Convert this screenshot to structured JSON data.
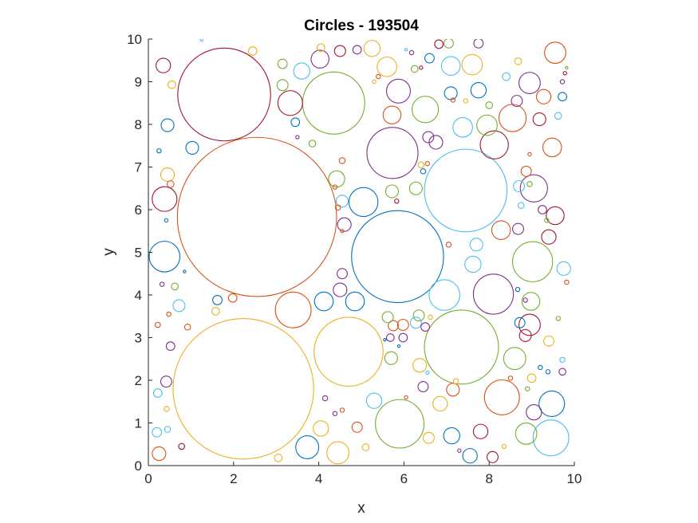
{
  "chart_data": {
    "type": "scatter",
    "title": "Circles - 193504",
    "xlabel": "x",
    "ylabel": "y",
    "xlim": [
      0,
      10
    ],
    "ylim": [
      0,
      10
    ],
    "xticks": [
      "0",
      "2",
      "4",
      "6",
      "8",
      "10"
    ],
    "yticks": [
      "0",
      "1",
      "2",
      "3",
      "4",
      "5",
      "6",
      "7",
      "8",
      "9",
      "10"
    ],
    "grid": false,
    "axis_equal": true,
    "colors": [
      "#0072BD",
      "#D95319",
      "#EDB120",
      "#7E2F8E",
      "#77AC30",
      "#4DBEEE",
      "#A2142F"
    ],
    "circles": [
      {
        "x": 2.55,
        "y": 5.83,
        "r": 1.87,
        "color": "#D95319"
      },
      {
        "x": 2.23,
        "y": 1.8,
        "r": 1.65,
        "color": "#EDB120"
      },
      {
        "x": 1.78,
        "y": 8.7,
        "r": 1.09,
        "color": "#A2142F"
      },
      {
        "x": 5.85,
        "y": 4.9,
        "r": 1.08,
        "color": "#0072BD"
      },
      {
        "x": 7.45,
        "y": 6.45,
        "r": 0.97,
        "color": "#4DBEEE"
      },
      {
        "x": 7.35,
        "y": 2.78,
        "r": 0.87,
        "color": "#77AC30"
      },
      {
        "x": 4.7,
        "y": 2.67,
        "r": 0.81,
        "color": "#EDB120"
      },
      {
        "x": 4.35,
        "y": 8.5,
        "r": 0.73,
        "color": "#77AC30"
      },
      {
        "x": 5.73,
        "y": 7.33,
        "r": 0.6,
        "color": "#7E2F8E"
      },
      {
        "x": 5.9,
        "y": 0.98,
        "r": 0.57,
        "color": "#77AC30"
      },
      {
        "x": 8.1,
        "y": 4.02,
        "r": 0.47,
        "color": "#7E2F8E"
      },
      {
        "x": 9.02,
        "y": 4.78,
        "r": 0.47,
        "color": "#77AC30"
      },
      {
        "x": 9.45,
        "y": 0.65,
        "r": 0.42,
        "color": "#4DBEEE"
      },
      {
        "x": 8.3,
        "y": 1.6,
        "r": 0.41,
        "color": "#D95319"
      },
      {
        "x": 3.4,
        "y": 3.65,
        "r": 0.42,
        "color": "#D95319"
      },
      {
        "x": 0.38,
        "y": 4.9,
        "r": 0.36,
        "color": "#0072BD"
      },
      {
        "x": 6.95,
        "y": 4.0,
        "r": 0.36,
        "color": "#4DBEEE"
      },
      {
        "x": 5.05,
        "y": 6.18,
        "r": 0.34,
        "color": "#0072BD"
      },
      {
        "x": 8.12,
        "y": 7.52,
        "r": 0.33,
        "color": "#A2142F"
      },
      {
        "x": 8.55,
        "y": 8.15,
        "r": 0.32,
        "color": "#D95319"
      },
      {
        "x": 6.5,
        "y": 8.35,
        "r": 0.31,
        "color": "#77AC30"
      },
      {
        "x": 9.05,
        "y": 6.5,
        "r": 0.32,
        "color": "#7E2F8E"
      },
      {
        "x": 3.33,
        "y": 8.5,
        "r": 0.29,
        "color": "#A2142F"
      },
      {
        "x": 0.38,
        "y": 6.25,
        "r": 0.29,
        "color": "#A2142F"
      },
      {
        "x": 8.95,
        "y": 3.3,
        "r": 0.25,
        "color": "#A2142F"
      },
      {
        "x": 8.87,
        "y": 0.75,
        "r": 0.25,
        "color": "#77AC30"
      },
      {
        "x": 3.73,
        "y": 0.43,
        "r": 0.27,
        "color": "#0072BD"
      },
      {
        "x": 4.45,
        "y": 0.3,
        "r": 0.26,
        "color": "#EDB120"
      },
      {
        "x": 9.47,
        "y": 1.45,
        "r": 0.3,
        "color": "#0072BD"
      },
      {
        "x": 8.95,
        "y": 8.97,
        "r": 0.25,
        "color": "#7E2F8E"
      },
      {
        "x": 7.6,
        "y": 9.4,
        "r": 0.24,
        "color": "#EDB120"
      },
      {
        "x": 7.1,
        "y": 9.37,
        "r": 0.22,
        "color": "#4DBEEE"
      },
      {
        "x": 5.6,
        "y": 9.35,
        "r": 0.23,
        "color": "#EDB120"
      },
      {
        "x": 5.87,
        "y": 8.78,
        "r": 0.28,
        "color": "#7E2F8E"
      },
      {
        "x": 7.95,
        "y": 7.98,
        "r": 0.24,
        "color": "#77AC30"
      },
      {
        "x": 7.38,
        "y": 7.93,
        "r": 0.23,
        "color": "#4DBEEE"
      },
      {
        "x": 5.72,
        "y": 8.22,
        "r": 0.21,
        "color": "#D95319"
      },
      {
        "x": 4.03,
        "y": 9.53,
        "r": 0.21,
        "color": "#7E2F8E"
      },
      {
        "x": 3.6,
        "y": 9.25,
        "r": 0.19,
        "color": "#4DBEEE"
      },
      {
        "x": 9.55,
        "y": 9.68,
        "r": 0.25,
        "color": "#D95319"
      },
      {
        "x": 9.48,
        "y": 7.46,
        "r": 0.22,
        "color": "#D95319"
      },
      {
        "x": 9.55,
        "y": 5.86,
        "r": 0.21,
        "color": "#A2142F"
      },
      {
        "x": 9.75,
        "y": 4.62,
        "r": 0.16,
        "color": "#4DBEEE"
      },
      {
        "x": 9.4,
        "y": 5.36,
        "r": 0.17,
        "color": "#A2142F"
      },
      {
        "x": 8.6,
        "y": 2.51,
        "r": 0.26,
        "color": "#77AC30"
      },
      {
        "x": 8.08,
        "y": 0.2,
        "r": 0.13,
        "color": "#A2142F"
      },
      {
        "x": 7.55,
        "y": 0.23,
        "r": 0.17,
        "color": "#0072BD"
      },
      {
        "x": 7.8,
        "y": 0.8,
        "r": 0.17,
        "color": "#A2142F"
      },
      {
        "x": 7.12,
        "y": 0.7,
        "r": 0.19,
        "color": "#0072BD"
      },
      {
        "x": 6.85,
        "y": 1.45,
        "r": 0.17,
        "color": "#EDB120"
      },
      {
        "x": 7.15,
        "y": 1.78,
        "r": 0.15,
        "color": "#D95319"
      },
      {
        "x": 6.58,
        "y": 0.65,
        "r": 0.13,
        "color": "#EDB120"
      },
      {
        "x": 9.05,
        "y": 1.25,
        "r": 0.18,
        "color": "#7E2F8E"
      },
      {
        "x": 5.3,
        "y": 1.52,
        "r": 0.18,
        "color": "#4DBEEE"
      },
      {
        "x": 4.05,
        "y": 0.87,
        "r": 0.18,
        "color": "#EDB120"
      },
      {
        "x": 4.12,
        "y": 3.85,
        "r": 0.22,
        "color": "#0072BD"
      },
      {
        "x": 4.6,
        "y": 5.65,
        "r": 0.16,
        "color": "#7E2F8E"
      },
      {
        "x": 4.55,
        "y": 6.2,
        "r": 0.14,
        "color": "#4DBEEE"
      },
      {
        "x": 4.42,
        "y": 6.72,
        "r": 0.19,
        "color": "#77AC30"
      },
      {
        "x": 5.25,
        "y": 9.78,
        "r": 0.19,
        "color": "#EDB120"
      },
      {
        "x": 4.5,
        "y": 9.72,
        "r": 0.13,
        "color": "#A2142F"
      },
      {
        "x": 7.62,
        "y": 4.72,
        "r": 0.19,
        "color": "#4DBEEE"
      },
      {
        "x": 7.7,
        "y": 5.18,
        "r": 0.15,
        "color": "#4DBEEE"
      },
      {
        "x": 8.28,
        "y": 5.52,
        "r": 0.22,
        "color": "#D95319"
      },
      {
        "x": 8.68,
        "y": 5.55,
        "r": 0.13,
        "color": "#7E2F8E"
      },
      {
        "x": 8.98,
        "y": 3.85,
        "r": 0.21,
        "color": "#77AC30"
      },
      {
        "x": 8.85,
        "y": 3.05,
        "r": 0.14,
        "color": "#A2142F"
      },
      {
        "x": 9.4,
        "y": 2.92,
        "r": 0.12,
        "color": "#EDB120"
      },
      {
        "x": 5.72,
        "y": 6.43,
        "r": 0.15,
        "color": "#77AC30"
      },
      {
        "x": 6.28,
        "y": 6.5,
        "r": 0.15,
        "color": "#77AC30"
      },
      {
        "x": 6.75,
        "y": 7.58,
        "r": 0.16,
        "color": "#7E2F8E"
      },
      {
        "x": 6.57,
        "y": 7.7,
        "r": 0.13,
        "color": "#7E2F8E"
      },
      {
        "x": 7.1,
        "y": 8.73,
        "r": 0.15,
        "color": "#0072BD"
      },
      {
        "x": 7.75,
        "y": 8.8,
        "r": 0.18,
        "color": "#0072BD"
      },
      {
        "x": 9.18,
        "y": 8.12,
        "r": 0.15,
        "color": "#A2142F"
      },
      {
        "x": 0.35,
        "y": 9.38,
        "r": 0.17,
        "color": "#A2142F"
      },
      {
        "x": 0.45,
        "y": 7.98,
        "r": 0.15,
        "color": "#0072BD"
      },
      {
        "x": 1.03,
        "y": 7.45,
        "r": 0.15,
        "color": "#0072BD"
      },
      {
        "x": 0.45,
        "y": 6.82,
        "r": 0.16,
        "color": "#EDB120"
      },
      {
        "x": 0.25,
        "y": 0.28,
        "r": 0.16,
        "color": "#D95319"
      },
      {
        "x": 0.42,
        "y": 1.97,
        "r": 0.13,
        "color": "#7E2F8E"
      },
      {
        "x": 0.72,
        "y": 3.75,
        "r": 0.14,
        "color": "#4DBEEE"
      },
      {
        "x": 3.15,
        "y": 8.92,
        "r": 0.13,
        "color": "#77AC30"
      },
      {
        "x": 3.45,
        "y": 8.05,
        "r": 0.1,
        "color": "#0072BD"
      },
      {
        "x": 6.28,
        "y": 3.35,
        "r": 0.13,
        "color": "#4DBEEE"
      },
      {
        "x": 6.37,
        "y": 2.35,
        "r": 0.16,
        "color": "#EDB120"
      },
      {
        "x": 5.7,
        "y": 2.52,
        "r": 0.15,
        "color": "#77AC30"
      },
      {
        "x": 5.75,
        "y": 3.28,
        "r": 0.12,
        "color": "#D95319"
      },
      {
        "x": 5.98,
        "y": 3.3,
        "r": 0.13,
        "color": "#D95319"
      },
      {
        "x": 6.35,
        "y": 3.52,
        "r": 0.13,
        "color": "#77AC30"
      },
      {
        "x": 6.45,
        "y": 1.85,
        "r": 0.12,
        "color": "#7E2F8E"
      },
      {
        "x": 4.05,
        "y": 9.8,
        "r": 0.09,
        "color": "#EDB120"
      },
      {
        "x": 4.9,
        "y": 0.9,
        "r": 0.12,
        "color": "#D95319"
      },
      {
        "x": 4.55,
        "y": 4.5,
        "r": 0.12,
        "color": "#7E2F8E"
      },
      {
        "x": 6.6,
        "y": 9.55,
        "r": 0.11,
        "color": "#0072BD"
      },
      {
        "x": 6.82,
        "y": 9.88,
        "r": 0.1,
        "color": "#A2142F"
      },
      {
        "x": 7.05,
        "y": 9.9,
        "r": 0.11,
        "color": "#77AC30"
      },
      {
        "x": 7.75,
        "y": 9.9,
        "r": 0.11,
        "color": "#7E2F8E"
      },
      {
        "x": 2.45,
        "y": 9.72,
        "r": 0.1,
        "color": "#EDB120"
      },
      {
        "x": 3.15,
        "y": 9.42,
        "r": 0.11,
        "color": "#77AC30"
      },
      {
        "x": 5.68,
        "y": 3.0,
        "r": 0.09,
        "color": "#7E2F8E"
      },
      {
        "x": 5.98,
        "y": 3.0,
        "r": 0.1,
        "color": "#7E2F8E"
      },
      {
        "x": 6.5,
        "y": 3.25,
        "r": 0.1,
        "color": "#7E2F8E"
      },
      {
        "x": 8.0,
        "y": 8.45,
        "r": 0.08,
        "color": "#77AC30"
      },
      {
        "x": 8.87,
        "y": 6.9,
        "r": 0.12,
        "color": "#D95319"
      },
      {
        "x": 8.95,
        "y": 6.6,
        "r": 0.06,
        "color": "#77AC30"
      },
      {
        "x": 8.68,
        "y": 9.48,
        "r": 0.08,
        "color": "#EDB120"
      },
      {
        "x": 8.4,
        "y": 9.12,
        "r": 0.09,
        "color": "#4DBEEE"
      },
      {
        "x": 9.28,
        "y": 8.65,
        "r": 0.17,
        "color": "#D95319"
      },
      {
        "x": 8.65,
        "y": 8.55,
        "r": 0.13,
        "color": "#7E2F8E"
      },
      {
        "x": 0.55,
        "y": 8.93,
        "r": 0.09,
        "color": "#EDB120"
      },
      {
        "x": 0.52,
        "y": 6.6,
        "r": 0.08,
        "color": "#D95319"
      },
      {
        "x": 0.62,
        "y": 4.2,
        "r": 0.08,
        "color": "#77AC30"
      },
      {
        "x": 0.48,
        "y": 3.55,
        "r": 0.05,
        "color": "#D95319"
      },
      {
        "x": 0.92,
        "y": 3.25,
        "r": 0.07,
        "color": "#D95319"
      },
      {
        "x": 0.22,
        "y": 3.3,
        "r": 0.06,
        "color": "#D95319"
      },
      {
        "x": 0.32,
        "y": 4.25,
        "r": 0.05,
        "color": "#7E2F8E"
      },
      {
        "x": 0.52,
        "y": 2.8,
        "r": 0.1,
        "color": "#7E2F8E"
      },
      {
        "x": 0.22,
        "y": 1.7,
        "r": 0.1,
        "color": "#4DBEEE"
      },
      {
        "x": 0.43,
        "y": 1.33,
        "r": 0.06,
        "color": "#EDB120"
      },
      {
        "x": 0.2,
        "y": 0.78,
        "r": 0.11,
        "color": "#4DBEEE"
      },
      {
        "x": 0.45,
        "y": 0.85,
        "r": 0.07,
        "color": "#4DBEEE"
      },
      {
        "x": 0.78,
        "y": 0.45,
        "r": 0.07,
        "color": "#A2142F"
      },
      {
        "x": 1.62,
        "y": 3.88,
        "r": 0.11,
        "color": "#0072BD"
      },
      {
        "x": 1.98,
        "y": 3.93,
        "r": 0.1,
        "color": "#D95319"
      },
      {
        "x": 1.58,
        "y": 3.62,
        "r": 0.09,
        "color": "#EDB120"
      },
      {
        "x": 3.05,
        "y": 0.18,
        "r": 0.09,
        "color": "#EDB120"
      },
      {
        "x": 4.5,
        "y": 4.12,
        "r": 0.16,
        "color": "#7E2F8E"
      },
      {
        "x": 4.85,
        "y": 3.85,
        "r": 0.22,
        "color": "#0072BD"
      },
      {
        "x": 4.38,
        "y": 6.53,
        "r": 0.05,
        "color": "#D95319"
      },
      {
        "x": 4.55,
        "y": 5.5,
        "r": 0.04,
        "color": "#D95319"
      },
      {
        "x": 4.45,
        "y": 6.05,
        "r": 0.06,
        "color": "#D95319"
      },
      {
        "x": 4.15,
        "y": 1.58,
        "r": 0.06,
        "color": "#7E2F8E"
      },
      {
        "x": 4.38,
        "y": 1.22,
        "r": 0.05,
        "color": "#7E2F8E"
      },
      {
        "x": 4.55,
        "y": 1.3,
        "r": 0.05,
        "color": "#D95319"
      },
      {
        "x": 5.1,
        "y": 0.43,
        "r": 0.08,
        "color": "#EDB120"
      },
      {
        "x": 5.3,
        "y": 9.0,
        "r": 0.04,
        "color": "#EDB120"
      },
      {
        "x": 6.25,
        "y": 9.3,
        "r": 0.08,
        "color": "#77AC30"
      },
      {
        "x": 6.18,
        "y": 9.68,
        "r": 0.05,
        "color": "#7E2F8E"
      },
      {
        "x": 6.05,
        "y": 9.75,
        "r": 0.03,
        "color": "#4DBEEE"
      },
      {
        "x": 6.4,
        "y": 7.05,
        "r": 0.07,
        "color": "#EDB120"
      },
      {
        "x": 6.55,
        "y": 7.08,
        "r": 0.05,
        "color": "#D95319"
      },
      {
        "x": 6.45,
        "y": 6.9,
        "r": 0.06,
        "color": "#0072BD"
      },
      {
        "x": 5.83,
        "y": 6.2,
        "r": 0.05,
        "color": "#A2142F"
      },
      {
        "x": 7.15,
        "y": 8.57,
        "r": 0.05,
        "color": "#D95319"
      },
      {
        "x": 7.05,
        "y": 5.18,
        "r": 0.06,
        "color": "#D95319"
      },
      {
        "x": 7.45,
        "y": 8.55,
        "r": 0.05,
        "color": "#EDB120"
      },
      {
        "x": 8.67,
        "y": 4.13,
        "r": 0.05,
        "color": "#0072BD"
      },
      {
        "x": 8.85,
        "y": 3.88,
        "r": 0.05,
        "color": "#7E2F8E"
      },
      {
        "x": 8.7,
        "y": 6.55,
        "r": 0.13,
        "color": "#4DBEEE"
      },
      {
        "x": 8.75,
        "y": 6.1,
        "r": 0.07,
        "color": "#4DBEEE"
      },
      {
        "x": 9.25,
        "y": 6.0,
        "r": 0.1,
        "color": "#7E2F8E"
      },
      {
        "x": 9.35,
        "y": 5.75,
        "r": 0.05,
        "color": "#77AC30"
      },
      {
        "x": 9.38,
        "y": 2.2,
        "r": 0.05,
        "color": "#0072BD"
      },
      {
        "x": 9.2,
        "y": 2.3,
        "r": 0.05,
        "color": "#0072BD"
      },
      {
        "x": 9.72,
        "y": 2.2,
        "r": 0.08,
        "color": "#7E2F8E"
      },
      {
        "x": 9.72,
        "y": 2.48,
        "r": 0.06,
        "color": "#4DBEEE"
      },
      {
        "x": 9.82,
        "y": 4.3,
        "r": 0.05,
        "color": "#D95319"
      },
      {
        "x": 9.62,
        "y": 3.45,
        "r": 0.05,
        "color": "#77AC30"
      },
      {
        "x": 9.72,
        "y": 8.65,
        "r": 0.1,
        "color": "#0072BD"
      },
      {
        "x": 9.62,
        "y": 8.2,
        "r": 0.08,
        "color": "#4DBEEE"
      },
      {
        "x": 9.72,
        "y": 9.0,
        "r": 0.05,
        "color": "#7E2F8E"
      },
      {
        "x": 9.78,
        "y": 9.2,
        "r": 0.04,
        "color": "#A2142F"
      },
      {
        "x": 9.82,
        "y": 9.33,
        "r": 0.03,
        "color": "#77AC30"
      },
      {
        "x": 8.95,
        "y": 7.3,
        "r": 0.04,
        "color": "#D95319"
      },
      {
        "x": 8.5,
        "y": 2.05,
        "r": 0.05,
        "color": "#D95319"
      },
      {
        "x": 8.35,
        "y": 0.45,
        "r": 0.05,
        "color": "#EDB120"
      },
      {
        "x": 8.9,
        "y": 1.8,
        "r": 0.05,
        "color": "#77AC30"
      },
      {
        "x": 9.0,
        "y": 2.05,
        "r": 0.1,
        "color": "#EDB120"
      },
      {
        "x": 8.72,
        "y": 3.35,
        "r": 0.12,
        "color": "#0072BD"
      },
      {
        "x": 7.3,
        "y": 0.35,
        "r": 0.04,
        "color": "#7E2F8E"
      },
      {
        "x": 7.22,
        "y": 1.98,
        "r": 0.06,
        "color": "#EDB120"
      },
      {
        "x": 6.05,
        "y": 1.6,
        "r": 0.04,
        "color": "#D95319"
      },
      {
        "x": 6.55,
        "y": 2.18,
        "r": 0.04,
        "color": "#4DBEEE"
      },
      {
        "x": 5.55,
        "y": 2.95,
        "r": 0.03,
        "color": "#0072BD"
      },
      {
        "x": 5.62,
        "y": 3.48,
        "r": 0.13,
        "color": "#77AC30"
      },
      {
        "x": 6.62,
        "y": 3.48,
        "r": 0.05,
        "color": "#EDB120"
      },
      {
        "x": 5.88,
        "y": 2.8,
        "r": 0.03,
        "color": "#0072BD"
      },
      {
        "x": 5.4,
        "y": 9.12,
        "r": 0.05,
        "color": "#D95319"
      },
      {
        "x": 4.55,
        "y": 7.15,
        "r": 0.07,
        "color": "#D95319"
      },
      {
        "x": 3.85,
        "y": 7.55,
        "r": 0.08,
        "color": "#77AC30"
      },
      {
        "x": 3.5,
        "y": 7.7,
        "r": 0.04,
        "color": "#7E2F8E"
      },
      {
        "x": 4.9,
        "y": 9.75,
        "r": 0.1,
        "color": "#7E2F8E"
      },
      {
        "x": 6.4,
        "y": 9.33,
        "r": 0.04,
        "color": "#A2142F"
      },
      {
        "x": 1.25,
        "y": 9.98,
        "r": 0.03,
        "color": "#4DBEEE"
      },
      {
        "x": 0.25,
        "y": 7.38,
        "r": 0.05,
        "color": "#0072BD"
      },
      {
        "x": 0.42,
        "y": 5.75,
        "r": 0.04,
        "color": "#0072BD"
      },
      {
        "x": 0.85,
        "y": 4.55,
        "r": 0.03,
        "color": "#0072BD"
      }
    ]
  }
}
